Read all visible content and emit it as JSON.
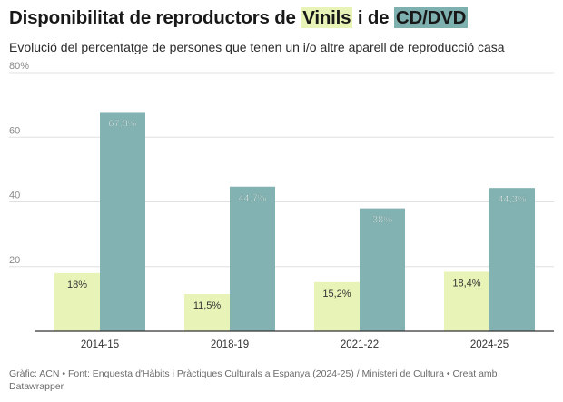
{
  "title": {
    "prefix": "Disponibilitat de reproductors de ",
    "vinyl": "Vinils",
    "middle": " i de ",
    "cd": "CD/DVD"
  },
  "subtitle": "Evolució del percentatge de persones que tenen un i/o altre aparell de reproducció casa",
  "source": "Gràfic: ACN • Font: Enquesta d'Hàbits i Pràctiques Culturals a Espanya (2024-25) / Ministeri de Cultura • Creat amb Datawrapper",
  "colors": {
    "vinyl": "#e8f3b7",
    "cd": "#82b2b1",
    "grid": "#e0e0e0",
    "axis": "#333333",
    "tick": "#8a8a8a"
  },
  "chart_data": {
    "type": "bar",
    "categories": [
      "2014-15",
      "2018-19",
      "2021-22",
      "2024-25"
    ],
    "series": [
      {
        "name": "Vinils",
        "values": [
          18,
          11.5,
          15.2,
          18.4
        ],
        "labels": [
          "18%",
          "11,5%",
          "15,2%",
          "18,4%"
        ]
      },
      {
        "name": "CD/DVD",
        "values": [
          67.8,
          44.7,
          38,
          44.3
        ],
        "labels": [
          "67,8%",
          "44,7%",
          "38%",
          "44,3%"
        ]
      }
    ],
    "ylim": [
      0,
      80
    ],
    "yticks": [
      20,
      40,
      60,
      80
    ],
    "ytick_labels": [
      "20",
      "40",
      "60",
      "80%"
    ],
    "grid": true
  }
}
